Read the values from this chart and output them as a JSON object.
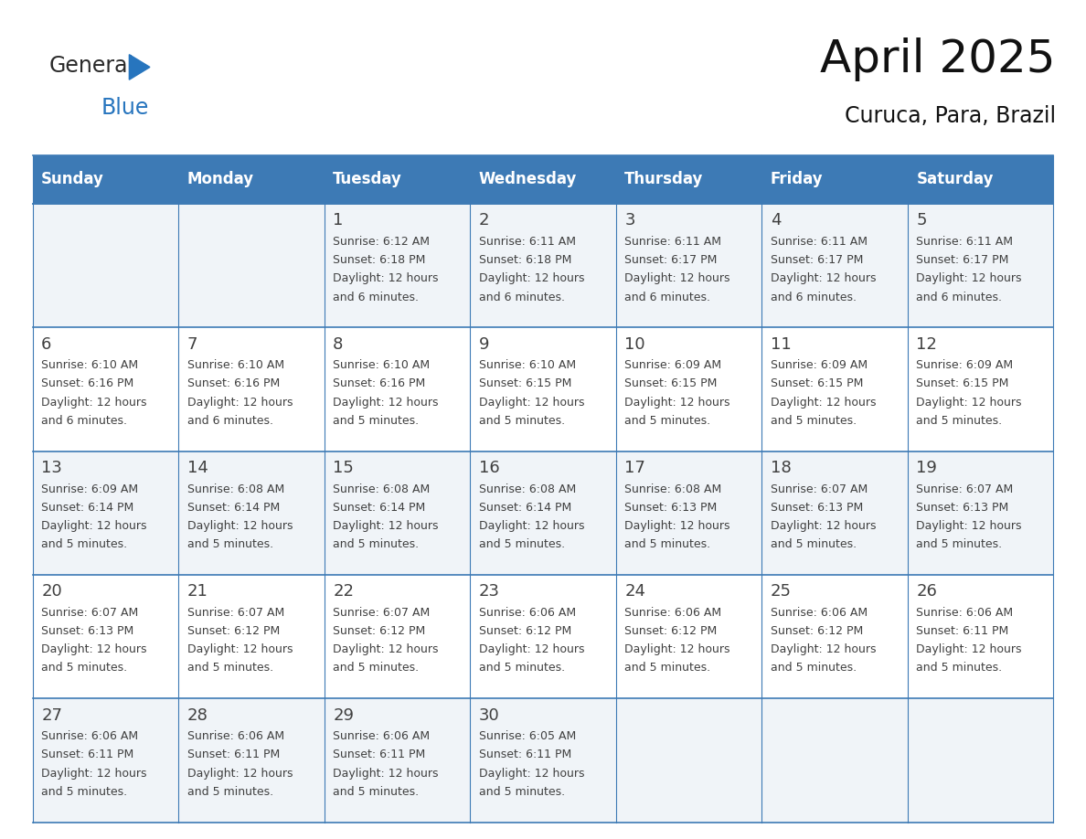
{
  "title": "April 2025",
  "subtitle": "Curuca, Para, Brazil",
  "header_bg": "#3d7ab5",
  "header_text_color": "#FFFFFF",
  "row_bg_odd": "#F0F4F8",
  "row_bg_even": "#FFFFFF",
  "border_color": "#3d7ab5",
  "text_color": "#404040",
  "days_of_week": [
    "Sunday",
    "Monday",
    "Tuesday",
    "Wednesday",
    "Thursday",
    "Friday",
    "Saturday"
  ],
  "weeks": [
    [
      {
        "day": "",
        "sunrise": "",
        "sunset": "",
        "daylight": ""
      },
      {
        "day": "",
        "sunrise": "",
        "sunset": "",
        "daylight": ""
      },
      {
        "day": "1",
        "sunrise": "Sunrise: 6:12 AM",
        "sunset": "Sunset: 6:18 PM",
        "daylight": "Daylight: 12 hours\nand 6 minutes."
      },
      {
        "day": "2",
        "sunrise": "Sunrise: 6:11 AM",
        "sunset": "Sunset: 6:18 PM",
        "daylight": "Daylight: 12 hours\nand 6 minutes."
      },
      {
        "day": "3",
        "sunrise": "Sunrise: 6:11 AM",
        "sunset": "Sunset: 6:17 PM",
        "daylight": "Daylight: 12 hours\nand 6 minutes."
      },
      {
        "day": "4",
        "sunrise": "Sunrise: 6:11 AM",
        "sunset": "Sunset: 6:17 PM",
        "daylight": "Daylight: 12 hours\nand 6 minutes."
      },
      {
        "day": "5",
        "sunrise": "Sunrise: 6:11 AM",
        "sunset": "Sunset: 6:17 PM",
        "daylight": "Daylight: 12 hours\nand 6 minutes."
      }
    ],
    [
      {
        "day": "6",
        "sunrise": "Sunrise: 6:10 AM",
        "sunset": "Sunset: 6:16 PM",
        "daylight": "Daylight: 12 hours\nand 6 minutes."
      },
      {
        "day": "7",
        "sunrise": "Sunrise: 6:10 AM",
        "sunset": "Sunset: 6:16 PM",
        "daylight": "Daylight: 12 hours\nand 6 minutes."
      },
      {
        "day": "8",
        "sunrise": "Sunrise: 6:10 AM",
        "sunset": "Sunset: 6:16 PM",
        "daylight": "Daylight: 12 hours\nand 5 minutes."
      },
      {
        "day": "9",
        "sunrise": "Sunrise: 6:10 AM",
        "sunset": "Sunset: 6:15 PM",
        "daylight": "Daylight: 12 hours\nand 5 minutes."
      },
      {
        "day": "10",
        "sunrise": "Sunrise: 6:09 AM",
        "sunset": "Sunset: 6:15 PM",
        "daylight": "Daylight: 12 hours\nand 5 minutes."
      },
      {
        "day": "11",
        "sunrise": "Sunrise: 6:09 AM",
        "sunset": "Sunset: 6:15 PM",
        "daylight": "Daylight: 12 hours\nand 5 minutes."
      },
      {
        "day": "12",
        "sunrise": "Sunrise: 6:09 AM",
        "sunset": "Sunset: 6:15 PM",
        "daylight": "Daylight: 12 hours\nand 5 minutes."
      }
    ],
    [
      {
        "day": "13",
        "sunrise": "Sunrise: 6:09 AM",
        "sunset": "Sunset: 6:14 PM",
        "daylight": "Daylight: 12 hours\nand 5 minutes."
      },
      {
        "day": "14",
        "sunrise": "Sunrise: 6:08 AM",
        "sunset": "Sunset: 6:14 PM",
        "daylight": "Daylight: 12 hours\nand 5 minutes."
      },
      {
        "day": "15",
        "sunrise": "Sunrise: 6:08 AM",
        "sunset": "Sunset: 6:14 PM",
        "daylight": "Daylight: 12 hours\nand 5 minutes."
      },
      {
        "day": "16",
        "sunrise": "Sunrise: 6:08 AM",
        "sunset": "Sunset: 6:14 PM",
        "daylight": "Daylight: 12 hours\nand 5 minutes."
      },
      {
        "day": "17",
        "sunrise": "Sunrise: 6:08 AM",
        "sunset": "Sunset: 6:13 PM",
        "daylight": "Daylight: 12 hours\nand 5 minutes."
      },
      {
        "day": "18",
        "sunrise": "Sunrise: 6:07 AM",
        "sunset": "Sunset: 6:13 PM",
        "daylight": "Daylight: 12 hours\nand 5 minutes."
      },
      {
        "day": "19",
        "sunrise": "Sunrise: 6:07 AM",
        "sunset": "Sunset: 6:13 PM",
        "daylight": "Daylight: 12 hours\nand 5 minutes."
      }
    ],
    [
      {
        "day": "20",
        "sunrise": "Sunrise: 6:07 AM",
        "sunset": "Sunset: 6:13 PM",
        "daylight": "Daylight: 12 hours\nand 5 minutes."
      },
      {
        "day": "21",
        "sunrise": "Sunrise: 6:07 AM",
        "sunset": "Sunset: 6:12 PM",
        "daylight": "Daylight: 12 hours\nand 5 minutes."
      },
      {
        "day": "22",
        "sunrise": "Sunrise: 6:07 AM",
        "sunset": "Sunset: 6:12 PM",
        "daylight": "Daylight: 12 hours\nand 5 minutes."
      },
      {
        "day": "23",
        "sunrise": "Sunrise: 6:06 AM",
        "sunset": "Sunset: 6:12 PM",
        "daylight": "Daylight: 12 hours\nand 5 minutes."
      },
      {
        "day": "24",
        "sunrise": "Sunrise: 6:06 AM",
        "sunset": "Sunset: 6:12 PM",
        "daylight": "Daylight: 12 hours\nand 5 minutes."
      },
      {
        "day": "25",
        "sunrise": "Sunrise: 6:06 AM",
        "sunset": "Sunset: 6:12 PM",
        "daylight": "Daylight: 12 hours\nand 5 minutes."
      },
      {
        "day": "26",
        "sunrise": "Sunrise: 6:06 AM",
        "sunset": "Sunset: 6:11 PM",
        "daylight": "Daylight: 12 hours\nand 5 minutes."
      }
    ],
    [
      {
        "day": "27",
        "sunrise": "Sunrise: 6:06 AM",
        "sunset": "Sunset: 6:11 PM",
        "daylight": "Daylight: 12 hours\nand 5 minutes."
      },
      {
        "day": "28",
        "sunrise": "Sunrise: 6:06 AM",
        "sunset": "Sunset: 6:11 PM",
        "daylight": "Daylight: 12 hours\nand 5 minutes."
      },
      {
        "day": "29",
        "sunrise": "Sunrise: 6:06 AM",
        "sunset": "Sunset: 6:11 PM",
        "daylight": "Daylight: 12 hours\nand 5 minutes."
      },
      {
        "day": "30",
        "sunrise": "Sunrise: 6:05 AM",
        "sunset": "Sunset: 6:11 PM",
        "daylight": "Daylight: 12 hours\nand 5 minutes."
      },
      {
        "day": "",
        "sunrise": "",
        "sunset": "",
        "daylight": ""
      },
      {
        "day": "",
        "sunrise": "",
        "sunset": "",
        "daylight": ""
      },
      {
        "day": "",
        "sunrise": "",
        "sunset": "",
        "daylight": ""
      }
    ]
  ],
  "logo_general_color": "#2a2a2a",
  "logo_blue_color": "#2775be",
  "logo_triangle_color": "#2775be",
  "title_fontsize": 36,
  "subtitle_fontsize": 17,
  "header_fontsize": 12,
  "day_num_fontsize": 13,
  "cell_text_fontsize": 9
}
